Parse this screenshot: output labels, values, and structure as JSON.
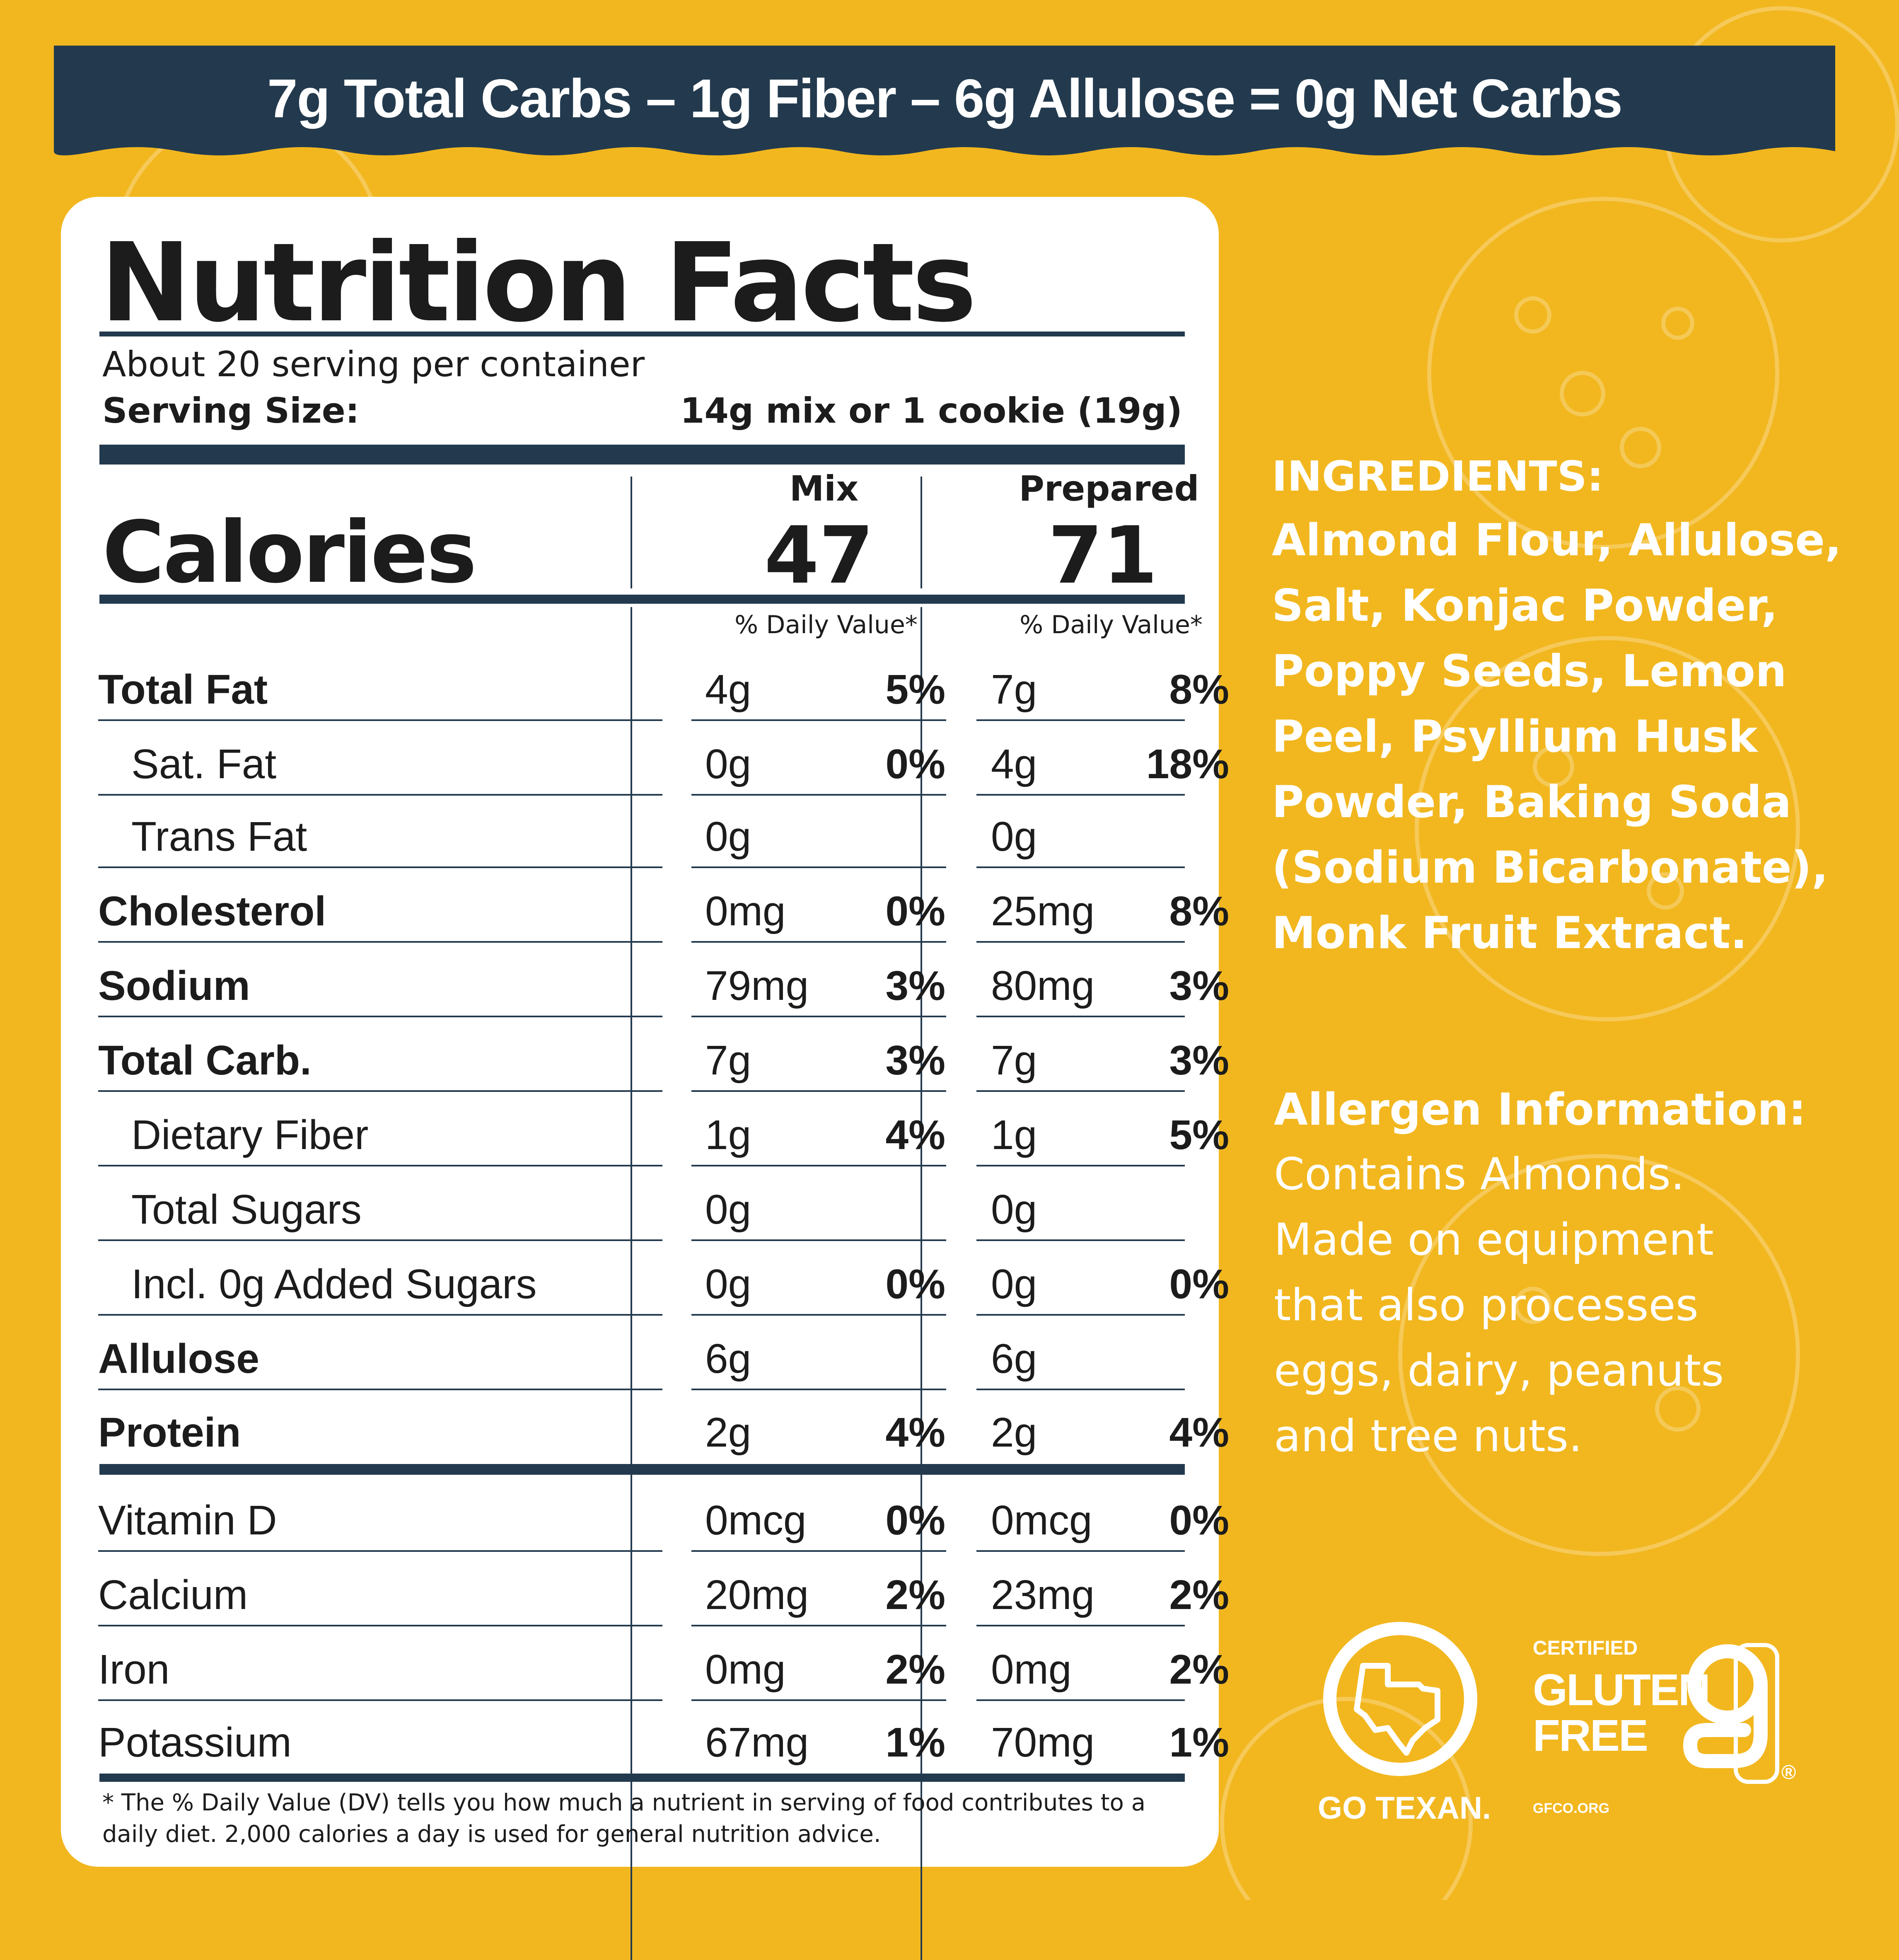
{
  "banner": {
    "text": "7g  Total Carbs  –  1g Fiber – 6g Allulose = 0g Net Carbs"
  },
  "label": {
    "title": "Nutrition Facts",
    "servings": "About 20 serving per container",
    "serving_size_label": "Serving Size:",
    "serving_size_value": "14g mix or 1 cookie (19g)",
    "calories_label": "Calories",
    "columns": [
      {
        "header": "Mix",
        "calories": "47",
        "dv_header": "% Daily Value*"
      },
      {
        "header": "Prepared",
        "calories": "71",
        "dv_header": "% Daily Value*"
      }
    ],
    "rows": [
      {
        "name": "Total Fat",
        "mix": "4g",
        "mix_dv": "5%",
        "prep": "7g",
        "prep_dv": "8%"
      },
      {
        "name": "Sat. Fat",
        "mix": "0g",
        "mix_dv": "0%",
        "prep": "4g",
        "prep_dv": "18%"
      },
      {
        "name": "Trans Fat",
        "mix": "0g",
        "mix_dv": "",
        "prep": "0g",
        "prep_dv": ""
      },
      {
        "name": "Cholesterol",
        "mix": "0mg",
        "mix_dv": "0%",
        "prep": "25mg",
        "prep_dv": "8%"
      },
      {
        "name": "Sodium",
        "mix": "79mg",
        "mix_dv": "3%",
        "prep": "80mg",
        "prep_dv": "3%"
      },
      {
        "name": "Total Carb.",
        "mix": "7g",
        "mix_dv": "3%",
        "prep": "7g",
        "prep_dv": "3%"
      },
      {
        "name": "Dietary Fiber",
        "mix": "1g",
        "mix_dv": "4%",
        "prep": "1g",
        "prep_dv": "5%"
      },
      {
        "name": "Total Sugars",
        "mix": "0g",
        "mix_dv": "",
        "prep": "0g",
        "prep_dv": ""
      },
      {
        "name": "Incl. 0g Added Sugars",
        "mix": "0g",
        "mix_dv": "0%",
        "prep": "0g",
        "prep_dv": "0%"
      },
      {
        "name": "Allulose",
        "mix": "6g",
        "mix_dv": "",
        "prep": "6g",
        "prep_dv": ""
      },
      {
        "name": "Protein",
        "mix": "2g",
        "mix_dv": "4%",
        "prep": "2g",
        "prep_dv": "4%"
      },
      {
        "name": "Vitamin D",
        "mix": "0mcg",
        "mix_dv": "0%",
        "prep": "0mcg",
        "prep_dv": "0%"
      },
      {
        "name": "Calcium",
        "mix": "20mg",
        "mix_dv": "2%",
        "prep": "23mg",
        "prep_dv": "2%"
      },
      {
        "name": "Iron",
        "mix": "0mg",
        "mix_dv": "2%",
        "prep": "0mg",
        "prep_dv": "2%"
      },
      {
        "name": "Potassium",
        "mix": "67mg",
        "mix_dv": "1%",
        "prep": "70mg",
        "prep_dv": "1%"
      }
    ],
    "footnote": "* The % Daily Value (DV) tells you how much a nutrient in serving of food contributes to a daily diet. 2,000 calories a day is used for general nutrition advice."
  },
  "ingredients": {
    "heading": "INGREDIENTS:",
    "lines": [
      "Almond Flour, Allulose,",
      "Salt, Konjac Powder,",
      "Poppy Seeds, Lemon",
      "Peel, Psyllium Husk",
      "Powder, Baking Soda",
      "(Sodium Bicarbonate),",
      "Monk Fruit Extract."
    ]
  },
  "allergen": {
    "heading": "Allergen Information:",
    "lines": [
      "Contains Almonds.",
      "Made on equipment",
      "that also processes",
      "eggs, dairy, peanuts",
      "and tree nuts."
    ]
  },
  "logos": {
    "go_texan": "GO TEXAN.",
    "gf_certified": "CERTIFIED",
    "gf_gluten": "GLUTEN",
    "gf_free": "FREE",
    "gf_site": "GFCO.ORG",
    "gf_reg": "®"
  },
  "colors": {
    "background": "#F2B71F",
    "navy": "#233A4E",
    "card": "#FFFFFF",
    "text": "#1C1C1C"
  }
}
